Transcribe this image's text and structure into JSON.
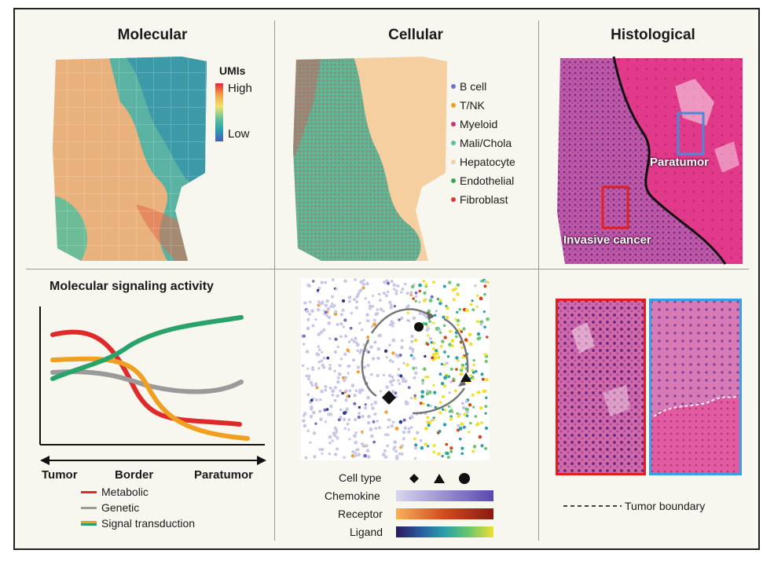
{
  "columns": {
    "molecular": "Molecular",
    "cellular": "Cellular",
    "histological": "Histological"
  },
  "umi_legend": {
    "title": "UMIs",
    "high": "High",
    "low": "Low"
  },
  "cell_types": [
    {
      "label": "B cell",
      "color": "#6b78c8"
    },
    {
      "label": "T/NK",
      "color": "#f0a020"
    },
    {
      "label": "Myeloid",
      "color": "#d0307a"
    },
    {
      "label": "Mali/Chola",
      "color": "#5cc0a0"
    },
    {
      "label": "Hepatocyte",
      "color": "#f6cfa0"
    },
    {
      "label": "Endothelial",
      "color": "#3aa84a"
    },
    {
      "label": "Fibroblast",
      "color": "#e03838"
    }
  ],
  "histology_labels": {
    "paratumor": "Paratumor",
    "invasive": "Invasive cancer",
    "boundary": "Tumor boundary"
  },
  "signaling": {
    "title": "Molecular signaling activity",
    "axis": [
      "Tumor",
      "Border",
      "Paratumor"
    ],
    "legend": [
      {
        "label": "Metabolic",
        "color": "#e02a2a"
      },
      {
        "label": "Genetic",
        "color": "#9a9a9a"
      },
      {
        "label": "Signal transduction",
        "color": "#f0a020",
        "color2": "#2aa36a"
      }
    ]
  },
  "interaction_legend": {
    "cell_type": "Cell type",
    "chemokine": "Chemokine",
    "receptor": "Receptor",
    "ligand": "Ligand",
    "chemokine_colors": [
      "#d8d6ee",
      "#5a48b0"
    ],
    "receptor_colors": [
      "#f6b15a",
      "#8a1a12"
    ],
    "ligand_colors": [
      "#2a1a5a",
      "#2a8ab0",
      "#f0e030"
    ]
  }
}
